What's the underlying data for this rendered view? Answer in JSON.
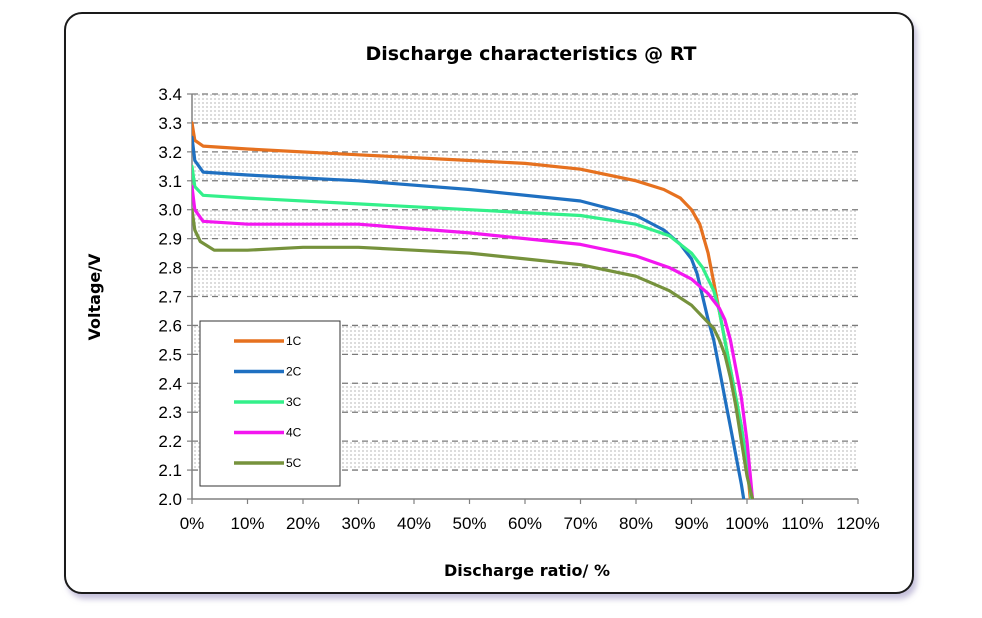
{
  "chart_data": {
    "type": "line",
    "title": "Discharge characteristics @ RT",
    "xlabel": "Discharge ratio/ %",
    "ylabel": "Voltage/V",
    "xlim": [
      0,
      120
    ],
    "ylim": [
      2.0,
      3.4
    ],
    "x_ticks": [
      "0%",
      "10%",
      "20%",
      "30%",
      "40%",
      "50%",
      "60%",
      "70%",
      "80%",
      "90%",
      "100%",
      "110%",
      "120%"
    ],
    "y_ticks": [
      "2.0",
      "2.1",
      "2.2",
      "2.3",
      "2.4",
      "2.5",
      "2.6",
      "2.7",
      "2.8",
      "2.9",
      "3.0",
      "3.1",
      "3.2",
      "3.3",
      "3.4"
    ],
    "grid": true,
    "legend_position": "bottom-left",
    "series": [
      {
        "name": "1C",
        "color": "#e6711f",
        "points": [
          [
            0,
            3.3
          ],
          [
            0.5,
            3.24
          ],
          [
            2,
            3.22
          ],
          [
            10,
            3.21
          ],
          [
            30,
            3.19
          ],
          [
            50,
            3.17
          ],
          [
            60,
            3.16
          ],
          [
            70,
            3.14
          ],
          [
            80,
            3.1
          ],
          [
            85,
            3.07
          ],
          [
            88,
            3.04
          ],
          [
            90,
            3.0
          ],
          [
            91.5,
            2.95
          ],
          [
            93,
            2.85
          ],
          [
            94,
            2.75
          ],
          [
            95,
            2.65
          ],
          [
            96,
            2.55
          ],
          [
            97,
            2.45
          ],
          [
            98,
            2.35
          ],
          [
            99,
            2.25
          ],
          [
            100,
            2.12
          ],
          [
            100.6,
            2.0
          ]
        ]
      },
      {
        "name": "2C",
        "color": "#1f70c1",
        "points": [
          [
            0,
            3.25
          ],
          [
            0.5,
            3.17
          ],
          [
            2,
            3.13
          ],
          [
            10,
            3.12
          ],
          [
            30,
            3.1
          ],
          [
            50,
            3.07
          ],
          [
            70,
            3.03
          ],
          [
            80,
            2.98
          ],
          [
            85,
            2.93
          ],
          [
            88,
            2.88
          ],
          [
            90,
            2.83
          ],
          [
            91,
            2.78
          ],
          [
            92,
            2.7
          ],
          [
            93,
            2.62
          ],
          [
            94,
            2.55
          ],
          [
            95,
            2.45
          ],
          [
            96,
            2.35
          ],
          [
            97,
            2.25
          ],
          [
            98,
            2.15
          ],
          [
            99,
            2.05
          ],
          [
            99.4,
            2.0
          ]
        ]
      },
      {
        "name": "3C",
        "color": "#33f08a",
        "points": [
          [
            0,
            3.15
          ],
          [
            0.5,
            3.08
          ],
          [
            2,
            3.05
          ],
          [
            10,
            3.04
          ],
          [
            30,
            3.02
          ],
          [
            50,
            3.0
          ],
          [
            70,
            2.98
          ],
          [
            80,
            2.95
          ],
          [
            86,
            2.91
          ],
          [
            90,
            2.85
          ],
          [
            92,
            2.8
          ],
          [
            94,
            2.72
          ],
          [
            95,
            2.65
          ],
          [
            96,
            2.55
          ],
          [
            97,
            2.45
          ],
          [
            98,
            2.35
          ],
          [
            99,
            2.25
          ],
          [
            100,
            2.12
          ],
          [
            100.8,
            2.0
          ]
        ]
      },
      {
        "name": "4C",
        "color": "#f316f0",
        "points": [
          [
            0,
            3.08
          ],
          [
            0.5,
            3.0
          ],
          [
            2,
            2.96
          ],
          [
            10,
            2.95
          ],
          [
            30,
            2.95
          ],
          [
            50,
            2.92
          ],
          [
            70,
            2.88
          ],
          [
            80,
            2.84
          ],
          [
            86,
            2.8
          ],
          [
            90,
            2.76
          ],
          [
            93,
            2.71
          ],
          [
            95,
            2.66
          ],
          [
            96,
            2.62
          ],
          [
            97,
            2.55
          ],
          [
            98,
            2.45
          ],
          [
            99,
            2.35
          ],
          [
            100,
            2.2
          ],
          [
            100.5,
            2.1
          ],
          [
            101,
            2.0
          ]
        ]
      },
      {
        "name": "5C",
        "color": "#76923c",
        "points": [
          [
            0,
            3.0
          ],
          [
            0.5,
            2.93
          ],
          [
            1.5,
            2.89
          ],
          [
            4,
            2.86
          ],
          [
            10,
            2.86
          ],
          [
            20,
            2.87
          ],
          [
            30,
            2.87
          ],
          [
            40,
            2.86
          ],
          [
            50,
            2.85
          ],
          [
            60,
            2.83
          ],
          [
            70,
            2.81
          ],
          [
            80,
            2.77
          ],
          [
            86,
            2.72
          ],
          [
            90,
            2.67
          ],
          [
            92,
            2.63
          ],
          [
            94,
            2.59
          ],
          [
            95,
            2.55
          ],
          [
            96,
            2.5
          ],
          [
            97,
            2.42
          ],
          [
            98,
            2.32
          ],
          [
            99,
            2.2
          ],
          [
            100,
            2.08
          ],
          [
            101,
            2.0
          ]
        ]
      }
    ]
  }
}
